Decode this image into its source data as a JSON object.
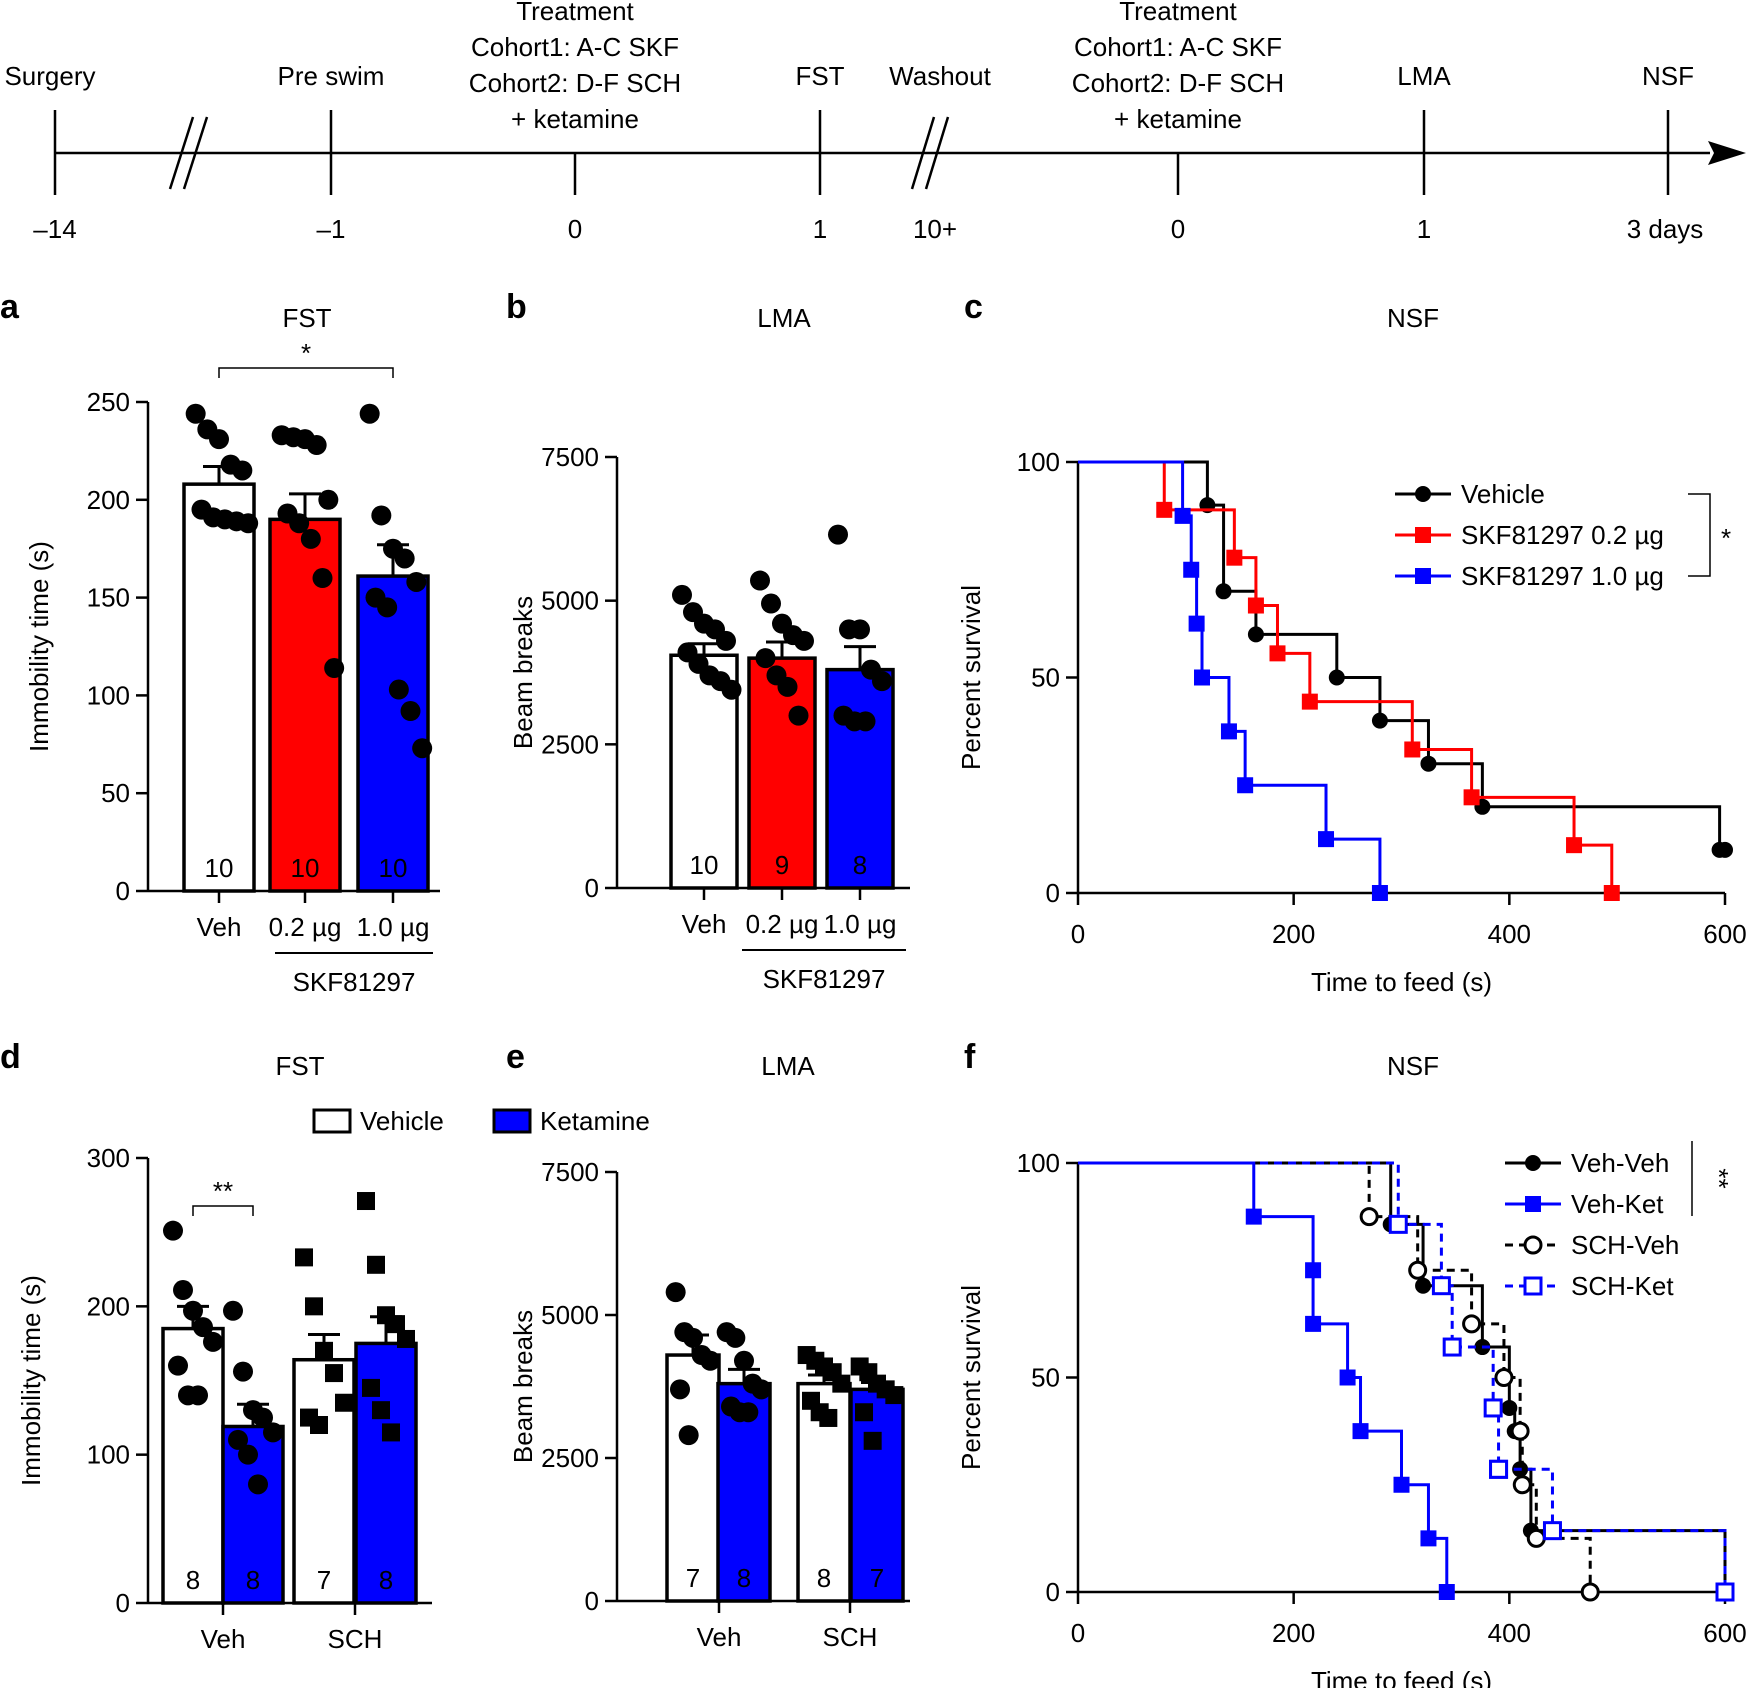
{
  "timeline": {
    "events": [
      {
        "day": "–14",
        "label": [
          "Surgery"
        ]
      },
      {
        "day": "–1",
        "label": [
          "Pre swim"
        ]
      },
      {
        "day": "0",
        "label": [
          "Treatment",
          "Cohort1: A-C SKF",
          "Cohort2: D-F SCH",
          "+ ketamine"
        ]
      },
      {
        "day": "1",
        "label": [
          "FST"
        ]
      },
      {
        "day": "10+",
        "label": [
          "Washout"
        ]
      },
      {
        "day": "0",
        "label": [
          "Treatment",
          "Cohort1: A-C SKF",
          "Cohort2: D-F SCH",
          "+ ketamine"
        ]
      },
      {
        "day": "1",
        "label": [
          "LMA"
        ]
      },
      {
        "day": "3 days",
        "label": [
          "NSF"
        ]
      }
    ]
  },
  "colors": {
    "white": "#ffffff",
    "red": "#ff0000",
    "blue": "#0000ff",
    "black": "#000000"
  },
  "chart_data": [
    {
      "letter": "a",
      "type": "bar",
      "title": "FST",
      "ylabel": "Immobility time (s)",
      "ylim": [
        0,
        250
      ],
      "yticks": [
        0,
        50,
        100,
        150,
        200,
        250
      ],
      "categories": [
        "Veh",
        "0.2 µg",
        "1.0 µg"
      ],
      "group_label": "SKF81297",
      "bars": [
        {
          "category": "Veh",
          "mean": 208,
          "sem": 9,
          "n": "10",
          "color": "#ffffff",
          "points": [
            244,
            236,
            231,
            218,
            215,
            195,
            191,
            190,
            189,
            188
          ]
        },
        {
          "category": "0.2 µg",
          "mean": 190,
          "sem": 13,
          "n": "10",
          "color": "#ff0000",
          "points": [
            233,
            232,
            231,
            228,
            200,
            193,
            188,
            180,
            160,
            114
          ]
        },
        {
          "category": "1.0 µg",
          "mean": 161,
          "sem": 16,
          "n": "10",
          "color": "#0000ff",
          "points": [
            244,
            192,
            175,
            170,
            158,
            150,
            145,
            103,
            92,
            73
          ]
        }
      ],
      "significance": {
        "from": 0,
        "to": 2,
        "label": "*"
      }
    },
    {
      "letter": "b",
      "type": "bar",
      "title": "LMA",
      "ylabel": "Beam breaks",
      "ylim": [
        0,
        7500
      ],
      "yticks": [
        0,
        2500,
        5000,
        7500
      ],
      "categories": [
        "Veh",
        "0.2 µg",
        "1.0 µg"
      ],
      "group_label": "SKF81297",
      "bars": [
        {
          "category": "Veh",
          "mean": 4050,
          "sem": 200,
          "n": "10",
          "color": "#ffffff",
          "points": [
            5100,
            4800,
            4600,
            4500,
            4300,
            4100,
            3900,
            3700,
            3600,
            3450
          ]
        },
        {
          "category": "0.2 µg",
          "mean": 4000,
          "sem": 280,
          "n": "9",
          "color": "#ff0000",
          "points": [
            5350,
            4950,
            4600,
            4400,
            4300,
            4000,
            3700,
            3500,
            3000
          ]
        },
        {
          "category": "1.0 µg",
          "mean": 3800,
          "sem": 400,
          "n": "8",
          "color": "#0000ff",
          "points": [
            6150,
            4500,
            4500,
            3800,
            3600,
            3000,
            2900,
            2900
          ]
        }
      ]
    },
    {
      "letter": "c",
      "type": "line",
      "title": "NSF",
      "xlabel": "Time to feed (s)",
      "ylabel": "Percent survival",
      "xlim": [
        0,
        600
      ],
      "ylim": [
        0,
        100
      ],
      "xticks": [
        0,
        200,
        400,
        600
      ],
      "yticks": [
        0,
        50,
        100
      ],
      "series": [
        {
          "name": "Vehicle",
          "color": "#000000",
          "marker": "circle",
          "dashed": false,
          "x": [
            0,
            120,
            135,
            165,
            240,
            280,
            325,
            375,
            595,
            600
          ],
          "y": [
            100,
            90,
            70,
            60,
            50,
            40,
            30,
            20,
            10,
            10
          ]
        },
        {
          "name": "SKF81297 0.2 µg",
          "color": "#ff0000",
          "marker": "square",
          "dashed": false,
          "x": [
            0,
            80,
            145,
            165,
            185,
            215,
            310,
            365,
            460,
            495
          ],
          "y": [
            100,
            88.9,
            77.8,
            66.7,
            55.6,
            44.4,
            33.3,
            22.2,
            11.1,
            0
          ]
        },
        {
          "name": "SKF81297 1.0 µg",
          "color": "#0000ff",
          "marker": "square",
          "dashed": false,
          "x": [
            0,
            97,
            105,
            110,
            115,
            140,
            155,
            230,
            280
          ],
          "y": [
            100,
            87.5,
            75,
            62.5,
            50,
            37.5,
            25,
            12.5,
            0
          ]
        }
      ],
      "significance": {
        "label": "*"
      }
    },
    {
      "letter": "d",
      "type": "bar",
      "title": "FST",
      "ylabel": "Immobility time (s)",
      "ylim": [
        0,
        300
      ],
      "yticks": [
        0,
        100,
        200,
        300
      ],
      "categories": [
        "Veh",
        "SCH"
      ],
      "legend": [
        "Vehicle",
        "Ketamine"
      ],
      "bars": [
        {
          "category": "Veh",
          "group": "Vehicle",
          "mean": 185,
          "sem": 15,
          "n": "8",
          "color": "#ffffff",
          "points": [
            251,
            211,
            197,
            186,
            176,
            160,
            140,
            140
          ]
        },
        {
          "category": "Veh",
          "group": "Ketamine",
          "mean": 119,
          "sem": 15,
          "n": "8",
          "color": "#0000ff",
          "points": [
            197,
            156,
            130,
            125,
            115,
            110,
            100,
            80
          ]
        },
        {
          "category": "SCH",
          "group": "Vehicle",
          "mean": 164,
          "sem": 17,
          "n": "7",
          "color": "#ffffff",
          "points": [
            233,
            200,
            170,
            155,
            135,
            125,
            120
          ]
        },
        {
          "category": "SCH",
          "group": "Ketamine",
          "mean": 175,
          "sem": 18,
          "n": "8",
          "color": "#0000ff",
          "points": [
            271,
            228,
            194,
            188,
            178,
            145,
            130,
            115
          ]
        }
      ],
      "significance": {
        "from": 0,
        "to": 1,
        "label": "**"
      }
    },
    {
      "letter": "e",
      "type": "bar",
      "title": "LMA",
      "ylabel": "Beam breaks",
      "ylim": [
        0,
        7500
      ],
      "yticks": [
        0,
        2500,
        5000,
        7500
      ],
      "categories": [
        "Veh",
        "SCH"
      ],
      "bars": [
        {
          "category": "Veh",
          "group": "Vehicle",
          "mean": 4300,
          "sem": 350,
          "n": "7",
          "color": "#ffffff",
          "points": [
            5400,
            4700,
            4600,
            4300,
            4200,
            3700,
            2900
          ]
        },
        {
          "category": "Veh",
          "group": "Ketamine",
          "mean": 3800,
          "sem": 250,
          "n": "8",
          "color": "#0000ff",
          "points": [
            4700,
            4600,
            4200,
            3800,
            3700,
            3400,
            3300,
            3300
          ]
        },
        {
          "category": "SCH",
          "group": "Vehicle",
          "mean": 3800,
          "sem": 150,
          "n": "8",
          "color": "#ffffff",
          "points": [
            4300,
            4200,
            4100,
            4000,
            3800,
            3500,
            3300,
            3200
          ]
        },
        {
          "category": "SCH",
          "group": "Ketamine",
          "mean": 3700,
          "sem": 120,
          "n": "7",
          "color": "#0000ff",
          "points": [
            4100,
            4000,
            3800,
            3700,
            3600,
            3300,
            2800
          ]
        }
      ]
    },
    {
      "letter": "f",
      "type": "line",
      "title": "NSF",
      "xlabel": "Time to feed (s)",
      "ylabel": "Percent survival",
      "xlim": [
        0,
        600
      ],
      "ylim": [
        0,
        100
      ],
      "xticks": [
        0,
        200,
        400,
        600
      ],
      "yticks": [
        0,
        50,
        100
      ],
      "series": [
        {
          "name": "Veh-Veh",
          "color": "#000000",
          "marker": "circle",
          "dashed": false,
          "x": [
            0,
            290,
            320,
            375,
            400,
            405,
            410,
            420,
            600
          ],
          "y": [
            100,
            85.7,
            71.4,
            57.1,
            42.9,
            37.5,
            28.6,
            14.3,
            0
          ]
        },
        {
          "name": "Veh-Ket",
          "color": "#0000ff",
          "marker": "square",
          "dashed": false,
          "x": [
            0,
            163,
            218,
            218,
            250,
            262,
            300,
            325,
            342
          ],
          "y": [
            100,
            87.5,
            75,
            62.5,
            50,
            37.5,
            25,
            12.5,
            0
          ]
        },
        {
          "name": "SCH-Veh",
          "color": "#000000",
          "marker": "circle-open",
          "dashed": true,
          "x": [
            0,
            270,
            315,
            365,
            395,
            410,
            412,
            425,
            475
          ],
          "y": [
            100,
            87.5,
            75,
            62.5,
            50,
            37.5,
            25,
            12.5,
            0
          ]
        },
        {
          "name": "SCH-Ket",
          "color": "#0000ff",
          "marker": "square-open",
          "dashed": true,
          "x": [
            0,
            297,
            337,
            347,
            385,
            390,
            390,
            440,
            600
          ],
          "y": [
            100,
            85.7,
            71.4,
            57.1,
            42.9,
            28.6,
            28.6,
            14.3,
            0
          ]
        }
      ],
      "significance": {
        "label": "**"
      }
    }
  ]
}
